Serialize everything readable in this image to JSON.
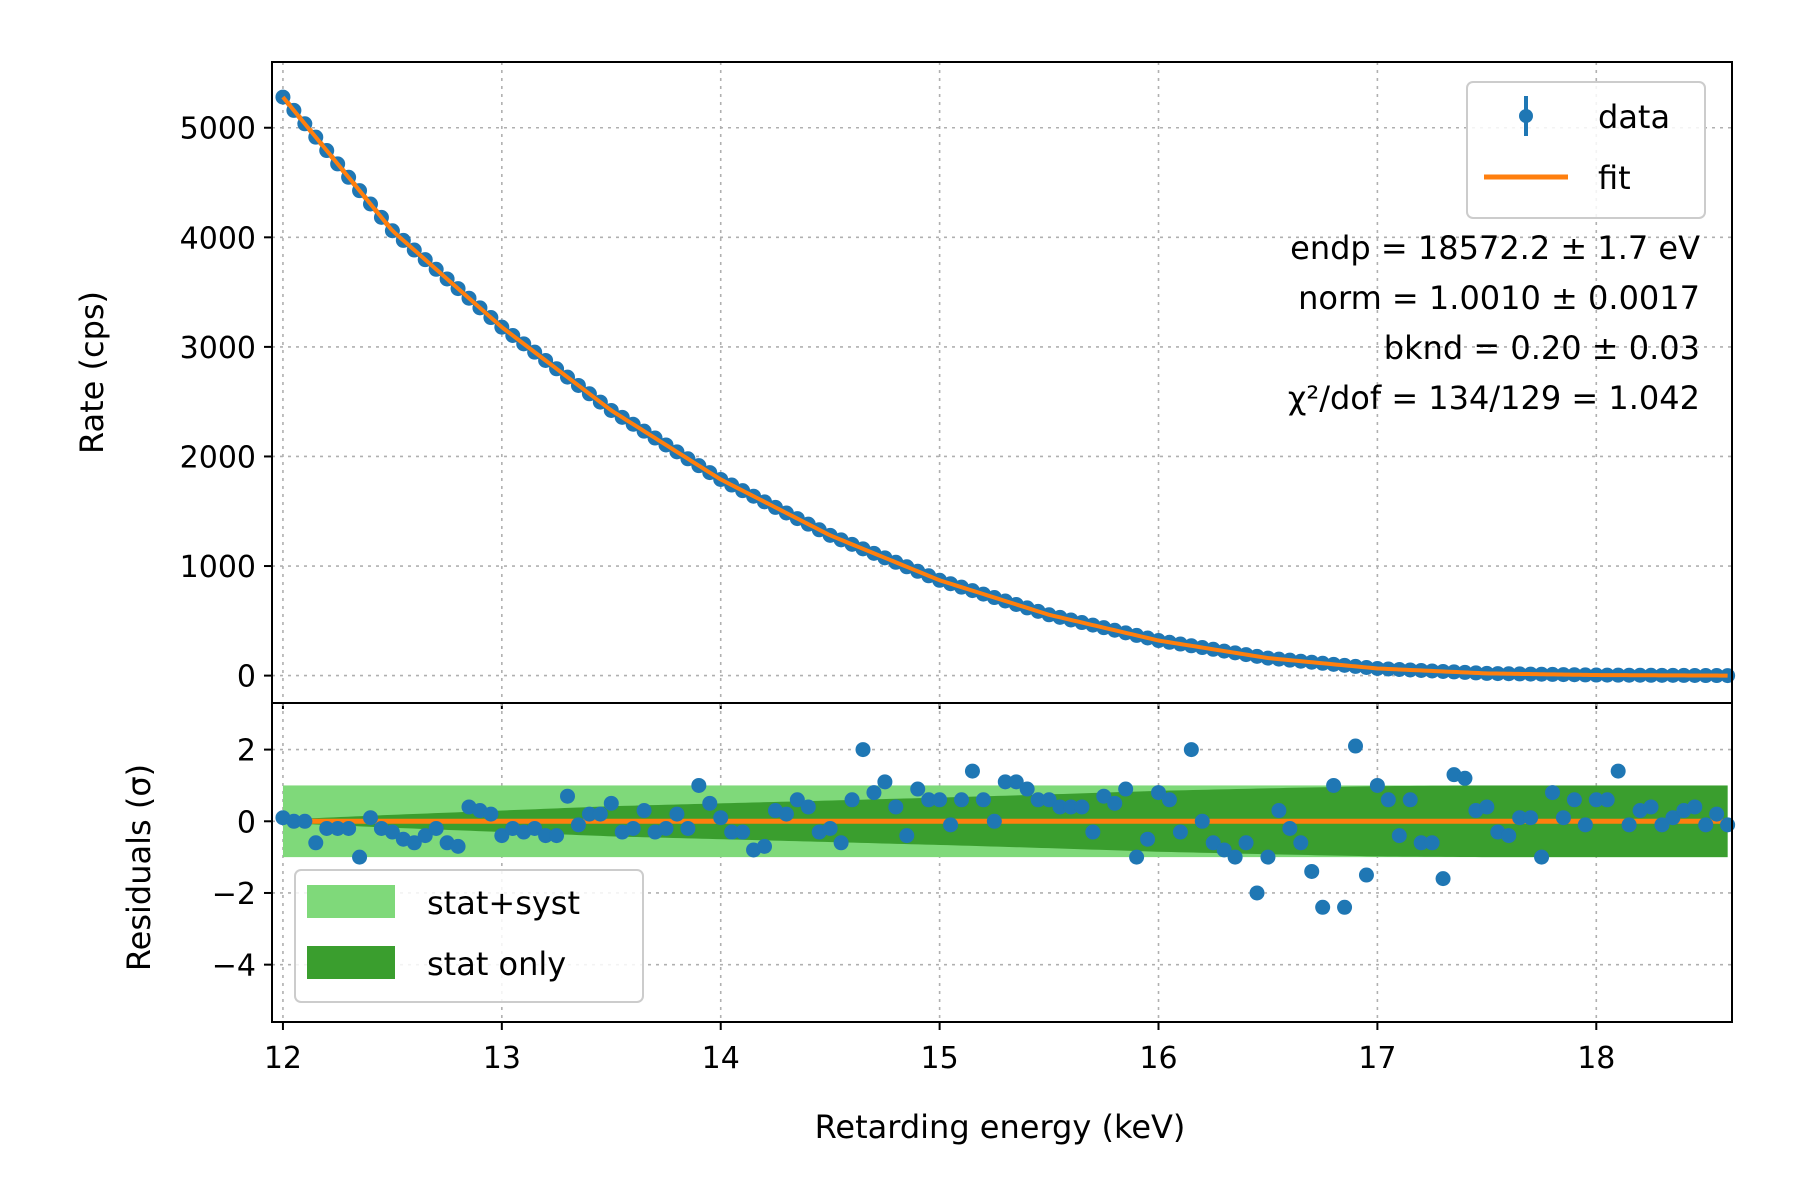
{
  "colors": {
    "data": "#1f77b4",
    "fit": "#ff7f0e",
    "stat_syst": "#7fd97a",
    "stat_only": "#3a9e2e"
  },
  "chart_data": [
    {
      "panel": "main",
      "type": "scatter",
      "xlabel": "",
      "ylabel": "Rate (cps)",
      "xlim": [
        11.95,
        18.62
      ],
      "ylim": [
        -250,
        5600
      ],
      "xticks": [
        12,
        13,
        14,
        15,
        16,
        17,
        18
      ],
      "yticks": [
        0,
        1000,
        2000,
        3000,
        4000,
        5000
      ],
      "ytick_labels": [
        "0",
        "1000",
        "2000",
        "3000",
        "4000",
        "5000"
      ],
      "grid": true,
      "legend": {
        "placement": "top-right",
        "entries": [
          {
            "label": "data",
            "marker": "point-with-errorbar",
            "color": "#1f77b4"
          },
          {
            "label": "fit",
            "marker": "line",
            "color": "#ff7f0e"
          }
        ]
      },
      "annotations": [
        "endp = 18572.2 ± 1.7 eV",
        "norm = 1.0010 ± 0.0017",
        "bknd = 0.20 ± 0.03",
        "χ²/dof = 134/129 = 1.042"
      ],
      "series": [
        {
          "name": "data",
          "kind": "points",
          "x_range": [
            12.0,
            18.6
          ],
          "n_points": 133,
          "x": [
            12.0,
            12.5,
            13.0,
            13.5,
            14.0,
            14.5,
            15.0,
            15.5,
            16.0,
            16.5,
            17.0,
            17.5,
            18.0,
            18.6
          ],
          "y": [
            5280,
            4060,
            3180,
            2420,
            1790,
            1280,
            870,
            555,
            320,
            160,
            65,
            20,
            5,
            0
          ]
        },
        {
          "name": "fit",
          "kind": "line",
          "x": [
            12.0,
            12.5,
            13.0,
            13.5,
            14.0,
            14.5,
            15.0,
            15.5,
            16.0,
            16.5,
            17.0,
            17.5,
            18.0,
            18.6
          ],
          "y": [
            5280,
            4060,
            3180,
            2420,
            1790,
            1280,
            870,
            555,
            320,
            160,
            65,
            20,
            5,
            0
          ]
        }
      ]
    },
    {
      "panel": "residuals",
      "type": "scatter",
      "xlabel": "Retarding energy (keV)",
      "ylabel": "Residuals (σ)",
      "xlim": [
        11.95,
        18.62
      ],
      "ylim": [
        -5.6,
        3.3
      ],
      "xticks": [
        12,
        13,
        14,
        15,
        16,
        17,
        18
      ],
      "xtick_labels": [
        "12",
        "13",
        "14",
        "15",
        "16",
        "17",
        "18"
      ],
      "yticks": [
        -4,
        -2,
        0,
        2
      ],
      "ytick_labels": [
        "−4",
        "−2",
        "0",
        "2"
      ],
      "grid": true,
      "legend": {
        "placement": "lower-left",
        "entries": [
          {
            "label": "stat+syst",
            "color": "#7fd97a"
          },
          {
            "label": "stat only",
            "color": "#3a9e2e"
          }
        ]
      },
      "bands": {
        "stat_syst": {
          "x_range": [
            12.0,
            18.6
          ],
          "halfwidth": 1.0
        },
        "stat_only": {
          "x": [
            12.0,
            12.5,
            13.0,
            13.5,
            14.0,
            14.5,
            15.0,
            15.5,
            16.0,
            16.5,
            17.0,
            17.5,
            18.0,
            18.6
          ],
          "halfwidth": [
            0.05,
            0.18,
            0.3,
            0.42,
            0.5,
            0.58,
            0.66,
            0.75,
            0.85,
            0.92,
            0.98,
            1.0,
            1.0,
            1.0
          ]
        }
      },
      "residuals": {
        "x": [
          12.0,
          12.05,
          12.1,
          12.15,
          12.2,
          12.25,
          12.3,
          12.35,
          12.4,
          12.45,
          12.5,
          12.55,
          12.6,
          12.65,
          12.7,
          12.75,
          12.8,
          12.85,
          12.9,
          12.95,
          13.0,
          13.05,
          13.1,
          13.15,
          13.2,
          13.25,
          13.3,
          13.35,
          13.4,
          13.45,
          13.5,
          13.55,
          13.6,
          13.65,
          13.7,
          13.75,
          13.8,
          13.85,
          13.9,
          13.95,
          14.0,
          14.05,
          14.1,
          14.15,
          14.2,
          14.25,
          14.3,
          14.35,
          14.4,
          14.45,
          14.5,
          14.55,
          14.6,
          14.65,
          14.7,
          14.75,
          14.8,
          14.85,
          14.9,
          14.95,
          15.0,
          15.05,
          15.1,
          15.15,
          15.2,
          15.25,
          15.3,
          15.35,
          15.4,
          15.45,
          15.5,
          15.55,
          15.6,
          15.65,
          15.7,
          15.75,
          15.8,
          15.85,
          15.9,
          15.95,
          16.0,
          16.05,
          16.1,
          16.15,
          16.2,
          16.25,
          16.3,
          16.35,
          16.4,
          16.45,
          16.5,
          16.55,
          16.6,
          16.65,
          16.7,
          16.75,
          16.8,
          16.85,
          16.9,
          16.95,
          17.0,
          17.05,
          17.1,
          17.15,
          17.2,
          17.25,
          17.3,
          17.35,
          17.4,
          17.45,
          17.5,
          17.55,
          17.6,
          17.65,
          17.7,
          17.75,
          17.8,
          17.85,
          17.9,
          17.95,
          18.0,
          18.05,
          18.1,
          18.15,
          18.2,
          18.25,
          18.3,
          18.35,
          18.4,
          18.45,
          18.5,
          18.55,
          18.6
        ],
        "y": [
          0.1,
          0.0,
          0.0,
          -0.6,
          -0.2,
          -0.2,
          -0.2,
          -1.0,
          0.1,
          -0.2,
          -0.3,
          -0.5,
          -0.6,
          -0.4,
          -0.2,
          -0.6,
          -0.7,
          0.4,
          0.3,
          0.2,
          -0.4,
          -0.2,
          -0.3,
          -0.2,
          -0.4,
          -0.4,
          0.7,
          -0.1,
          0.2,
          0.2,
          0.5,
          -0.3,
          -0.2,
          0.3,
          -0.3,
          -0.2,
          0.2,
          -0.2,
          1.0,
          0.5,
          0.1,
          -0.3,
          -0.3,
          -0.8,
          -0.7,
          0.3,
          0.2,
          0.6,
          0.4,
          -0.3,
          -0.2,
          -0.6,
          0.6,
          2.0,
          0.8,
          1.1,
          0.4,
          -0.4,
          0.9,
          0.6,
          0.6,
          -0.1,
          0.6,
          1.4,
          0.6,
          0.0,
          1.1,
          1.1,
          0.9,
          0.6,
          0.6,
          0.4,
          0.4,
          0.4,
          -0.3,
          0.7,
          0.5,
          0.9,
          -1.0,
          -0.5,
          0.8,
          0.6,
          -0.3,
          2.0,
          0.0,
          -0.6,
          -0.8,
          -1.0,
          -0.6,
          -2.0,
          -1.0,
          0.3,
          -0.2,
          -0.6,
          -1.4,
          -2.4,
          1.0,
          -2.4,
          2.1,
          -1.5,
          1.0,
          0.6,
          -0.4,
          0.6,
          -0.6,
          -0.6,
          -1.6,
          1.3,
          1.2,
          0.3,
          0.4,
          -0.3,
          -0.4,
          0.1,
          0.1,
          -1.0,
          0.8,
          0.1,
          0.6,
          -0.1,
          0.6,
          0.6,
          1.4,
          -0.1,
          0.3,
          0.4,
          -0.1,
          0.1,
          0.3,
          0.4,
          -0.1,
          0.2,
          -0.1
        ]
      },
      "zero_line": 0
    }
  ]
}
